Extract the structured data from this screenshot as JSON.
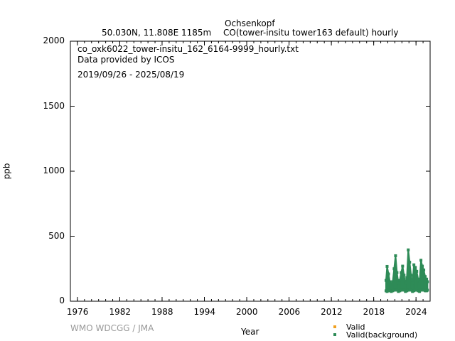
{
  "chart_data": {
    "type": "scatter",
    "title": "Ochsenkopf",
    "subtitle_location": "50.030N, 11.808E 1185m",
    "subtitle_species": "CO(tower-insitu tower163 default) hourly",
    "filename": "co_oxk6022_tower-insitu_162_6164-9999_hourly.txt",
    "provider": "Data provided by ICOS",
    "period": "2019/09/26 - 2025/08/19",
    "xlabel": "Year",
    "ylabel": "ppb",
    "xlim": [
      1975,
      2026
    ],
    "ylim": [
      0,
      2000
    ],
    "xticks": [
      1976,
      1982,
      1988,
      1994,
      2000,
      2006,
      2012,
      2018,
      2024
    ],
    "yticks": [
      0,
      500,
      1000,
      1500,
      2000
    ],
    "legend": [
      {
        "label": "Valid",
        "color": "#f0a020"
      },
      {
        "label": "Valid(background)",
        "color": "#2e8b57"
      }
    ],
    "legend_placement": "bottom-right",
    "credit": "WMO WDCGG / JMA",
    "series_background_envelope": [
      [
        2019.75,
        80,
        160
      ],
      [
        2019.9,
        75,
        268
      ],
      [
        2020.1,
        85,
        210
      ],
      [
        2020.3,
        80,
        150
      ],
      [
        2020.5,
        75,
        130
      ],
      [
        2020.7,
        80,
        150
      ],
      [
        2020.9,
        85,
        250
      ],
      [
        2021.1,
        90,
        350
      ],
      [
        2021.3,
        85,
        220
      ],
      [
        2021.5,
        75,
        140
      ],
      [
        2021.7,
        80,
        160
      ],
      [
        2021.9,
        85,
        220
      ],
      [
        2022.1,
        90,
        270
      ],
      [
        2022.3,
        85,
        200
      ],
      [
        2022.5,
        75,
        140
      ],
      [
        2022.7,
        80,
        180
      ],
      [
        2022.9,
        85,
        395
      ],
      [
        2023.1,
        90,
        300
      ],
      [
        2023.3,
        85,
        200
      ],
      [
        2023.5,
        75,
        140
      ],
      [
        2023.7,
        80,
        280
      ],
      [
        2023.9,
        85,
        260
      ],
      [
        2024.1,
        90,
        230
      ],
      [
        2024.3,
        80,
        170
      ],
      [
        2024.5,
        75,
        150
      ],
      [
        2024.7,
        85,
        315
      ],
      [
        2024.9,
        90,
        270
      ],
      [
        2025.1,
        85,
        240
      ],
      [
        2025.3,
        80,
        190
      ],
      [
        2025.5,
        80,
        170
      ],
      [
        2025.63,
        85,
        150
      ]
    ]
  }
}
